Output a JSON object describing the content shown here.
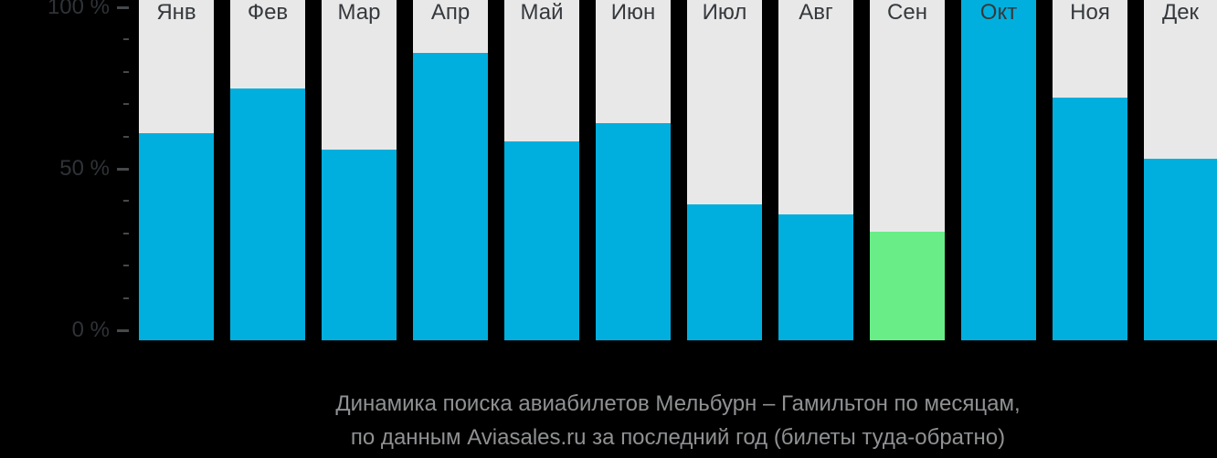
{
  "chart_data": {
    "type": "bar",
    "title": "Динамика поиска авиабилетов Мельбурн – Гамильтон по месяцам, по данным Aviasales.ru за последний год (билеты туда-обратно)",
    "categories": [
      "Янв",
      "Фев",
      "Мар",
      "Апр",
      "Май",
      "Июн",
      "Июл",
      "Авг",
      "Сен",
      "Окт",
      "Ноя",
      "Дек"
    ],
    "values": [
      61,
      75,
      56,
      86,
      58.5,
      64,
      39,
      36,
      30.5,
      102.5,
      72,
      53
    ],
    "unit": "%",
    "xlabel": "",
    "ylabel": "",
    "ylim": [
      0,
      100
    ],
    "ytick_labels_shown": [
      {
        "label": "0 %",
        "value": 0
      },
      {
        "label": "50 %",
        "value": 50
      },
      {
        "label": "100 %",
        "value": 100
      }
    ],
    "minor_tick_step": 10,
    "grid": false,
    "legend_position": "none",
    "bar_color": "#00afdd",
    "highlight": {
      "index": 8,
      "category": "Сен",
      "color": "#69ee87"
    },
    "track_color": "#e8e8e8",
    "notes": "bars drawn over full-height light-gray background tracks; October bar reaches top edge (exceeds 100 % tick)"
  },
  "title": {
    "line1": "Динамика поиска авиабилетов Мельбурн – Гамильтон по месяцам,",
    "line2": "по данным Aviasales.ru за последний год (билеты туда-обратно)"
  },
  "colors": {
    "background": "#000000",
    "bar": "#00afdd",
    "highlight_bar": "#69ee87",
    "track": "#e8e8e8",
    "axis_label_text": "#2f3337",
    "month_label_text": "#35393d",
    "title_text": "#8f9193",
    "tick_mark": "#46494c"
  }
}
